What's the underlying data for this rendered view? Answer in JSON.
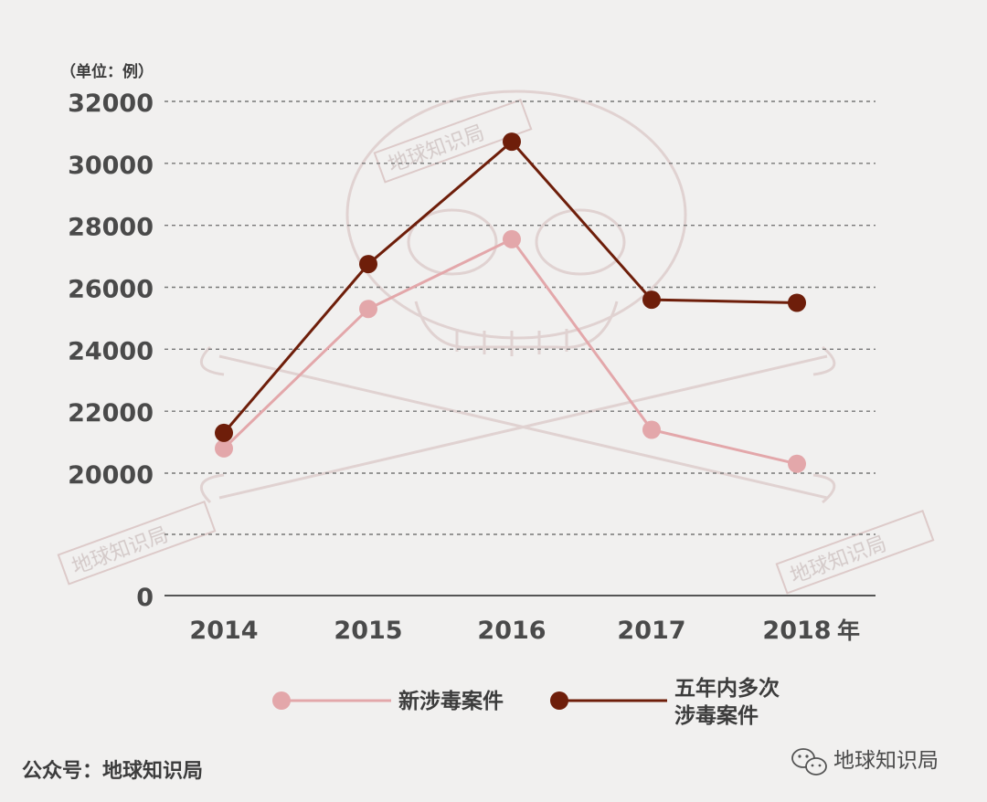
{
  "chart_data": {
    "type": "line",
    "unit_label": "（单位：例）",
    "x_suffix": "年",
    "categories": [
      "2014",
      "2015",
      "2016",
      "2017",
      "2018"
    ],
    "ylim": [
      0,
      32000
    ],
    "yticks": [
      0,
      20000,
      22000,
      24000,
      26000,
      28000,
      30000,
      32000
    ],
    "grid": true,
    "legend_position": "bottom",
    "series": [
      {
        "name": "新涉毒案件",
        "values": [
          20800,
          25300,
          27550,
          21400,
          20300
        ],
        "color": "#e3a7aa"
      },
      {
        "name_lines": [
          "五年内多次",
          "涉毒案件"
        ],
        "values": [
          21300,
          26750,
          30700,
          25600,
          25500
        ],
        "color": "#6e1e0a"
      }
    ]
  },
  "footer": {
    "source": "公众号：地球知识局",
    "brand": "地球知识局",
    "brand_icon": "wechat-icon"
  },
  "watermark": {
    "text": "地球知识局",
    "icon": "skull-and-crossbones-icon"
  }
}
